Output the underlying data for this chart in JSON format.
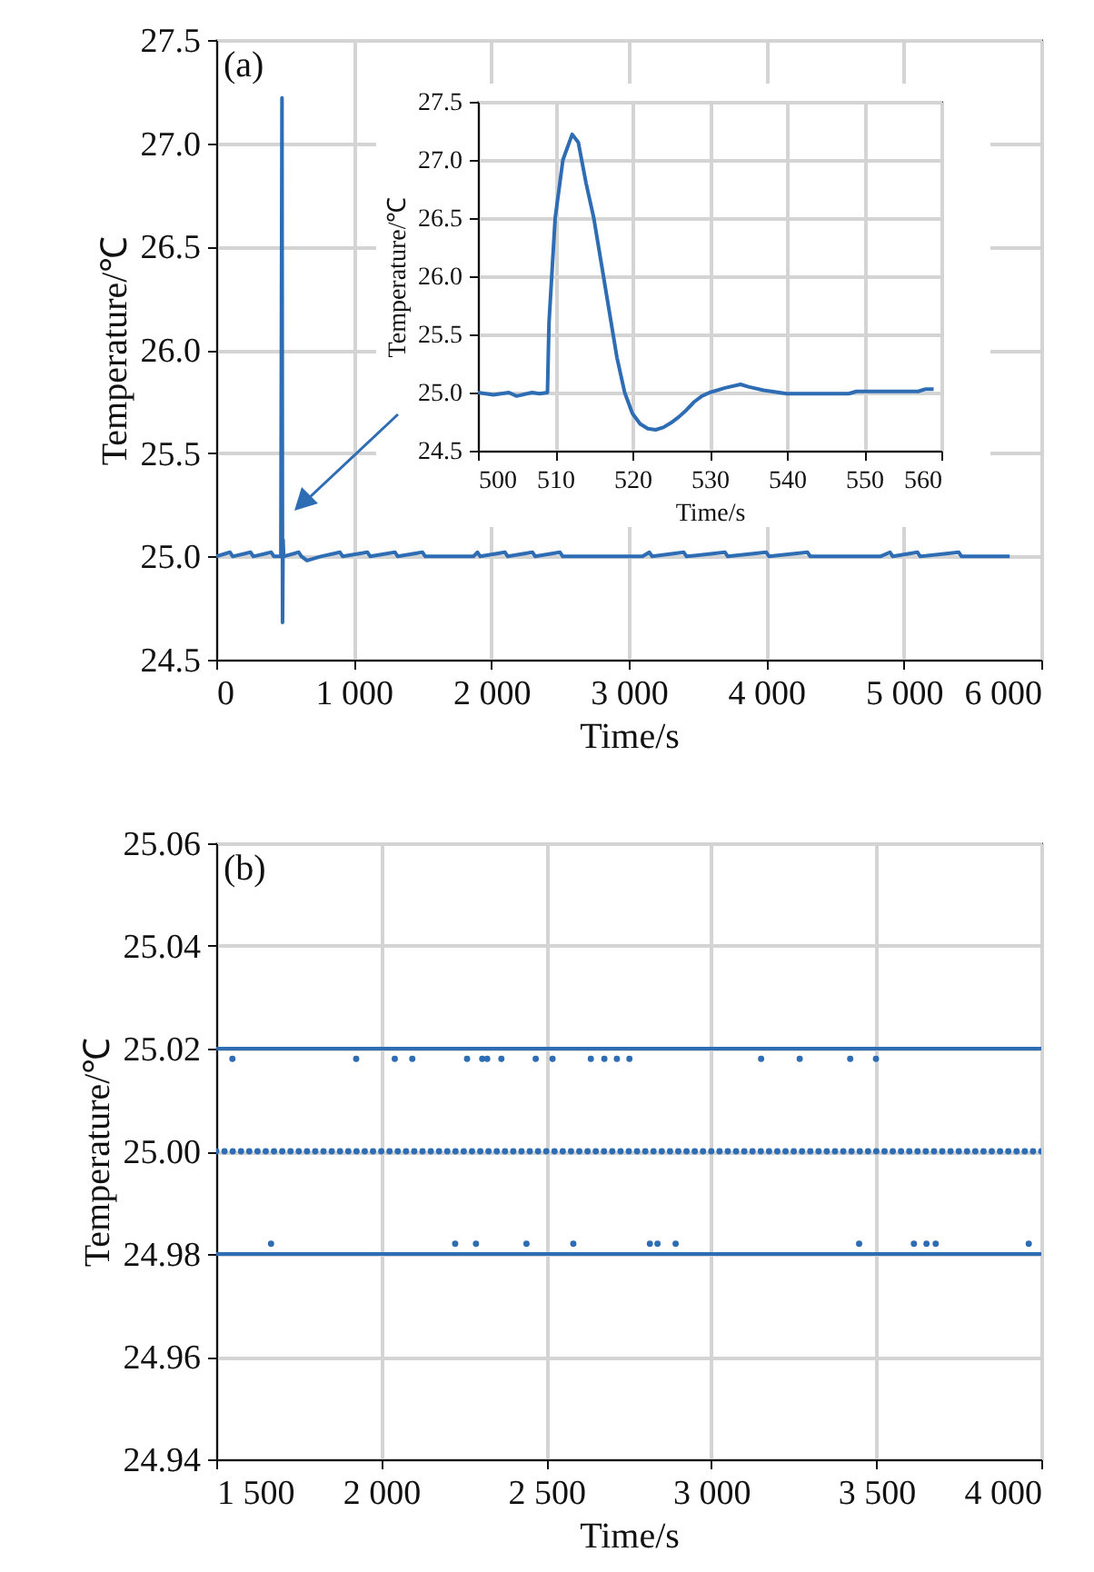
{
  "chart_data": [
    {
      "type": "line",
      "annotations": [
        "(a)"
      ],
      "xlabel": "Time/s",
      "ylabel": "Temperature/℃",
      "xlim": [
        0,
        6000
      ],
      "ylim": [
        24.5,
        27.5
      ],
      "xticks": [
        0,
        {
          "value": 1000,
          "label": "1 000"
        },
        {
          "value": 2000,
          "label": "2 000"
        },
        {
          "value": 3000,
          "label": "3 000"
        },
        {
          "value": 4000,
          "label": "4 000"
        },
        {
          "value": 5000,
          "label": "5 000"
        },
        {
          "value": 6000,
          "label": "6 000"
        }
      ],
      "yticks": [
        24.5,
        {
          "value": 25,
          "label": "25.0"
        },
        25.5,
        {
          "value": 26,
          "label": "26.0"
        },
        26.5,
        {
          "value": 27,
          "label": "27.0"
        },
        27.5
      ],
      "grid": true,
      "series": [
        {
          "color": "#2e6db4",
          "x": [
            0,
            100,
            120,
            250,
            270,
            400,
            420,
            470,
            478,
            482,
            486,
            490,
            600,
            620,
            660,
            760,
            900,
            920,
            1100,
            1120,
            1300,
            1320,
            1500,
            1520,
            1750,
            1870,
            1900,
            1920,
            2100,
            2120,
            2300,
            2320,
            2500,
            2520,
            2920,
            3100,
            3150,
            3170,
            3400,
            3420,
            3700,
            3720,
            4000,
            4020,
            4300,
            4320,
            4680,
            4830,
            4900,
            4920,
            5100,
            5120,
            5400,
            5420,
            5770
          ],
          "values": [
            25.0,
            25.02,
            25.0,
            25.02,
            25.0,
            25.02,
            25.0,
            25.0,
            27.22,
            24.68,
            25.08,
            25.0,
            25.02,
            25.0,
            24.98,
            25.0,
            25.02,
            25.0,
            25.02,
            25.0,
            25.02,
            25.0,
            25.02,
            25.0,
            25.0,
            25.0,
            25.02,
            25.0,
            25.02,
            25.0,
            25.02,
            25.0,
            25.02,
            25.0,
            25.0,
            25.0,
            25.02,
            25.0,
            25.02,
            25.0,
            25.02,
            25.0,
            25.02,
            25.0,
            25.02,
            25.0,
            25.0,
            25.0,
            25.02,
            25.0,
            25.02,
            25.0,
            25.02,
            25.0,
            25.0
          ]
        }
      ]
    },
    {
      "type": "line",
      "xlabel": "Time/s",
      "ylabel": "Temperature/℃",
      "xlim": [
        500,
        560
      ],
      "ylim": [
        24.5,
        27.5
      ],
      "xticks": [
        500,
        510,
        520,
        530,
        540,
        550,
        560
      ],
      "yticks": [
        24.5,
        {
          "value": 25,
          "label": "25.0"
        },
        25.5,
        {
          "value": 26,
          "label": "26.0"
        },
        26.5,
        {
          "value": 27,
          "label": "27.0"
        },
        27.5
      ],
      "grid": true,
      "series": [
        {
          "color": "#2e6db4",
          "x": [
            500,
            502,
            504,
            505,
            507,
            508,
            509,
            509.2,
            510,
            511,
            512.2,
            513,
            514,
            515,
            516,
            517,
            518,
            519,
            520,
            521,
            522,
            523,
            524,
            525,
            526,
            527,
            528,
            529,
            530,
            532,
            534,
            535,
            537,
            539,
            540,
            548,
            549,
            557,
            558,
            559
          ],
          "values": [
            25.0,
            24.98,
            25.0,
            24.97,
            25.0,
            24.99,
            25.0,
            25.6,
            26.5,
            27.0,
            27.22,
            27.15,
            26.8,
            26.5,
            26.1,
            25.7,
            25.3,
            25.0,
            24.82,
            24.73,
            24.69,
            24.68,
            24.7,
            24.74,
            24.79,
            24.85,
            24.92,
            24.97,
            25.0,
            25.04,
            25.07,
            25.05,
            25.02,
            25.0,
            24.99,
            24.99,
            25.01,
            25.01,
            25.03,
            25.03
          ]
        }
      ]
    },
    {
      "type": "scatter",
      "annotations": [
        "(b)"
      ],
      "xlabel": "Time/s",
      "ylabel": "Temperature/℃",
      "xlim": [
        1500,
        4000
      ],
      "ylim": [
        24.94,
        25.06
      ],
      "xticks": [
        {
          "value": 1500,
          "label": "1 500"
        },
        {
          "value": 2000,
          "label": "2 000"
        },
        {
          "value": 2500,
          "label": "2 500"
        },
        {
          "value": 3000,
          "label": "3 000"
        },
        {
          "value": 3500,
          "label": "3 500"
        },
        {
          "value": 4000,
          "label": "4 000"
        }
      ],
      "yticks": [
        24.94,
        24.96,
        24.98,
        {
          "value": 25,
          "label": "25.00"
        },
        25.02,
        25.04,
        25.06
      ],
      "grid": true,
      "marker": "circle",
      "series": [
        {
          "type": "line",
          "marker": "none",
          "color": "#2e6db4",
          "x": [
            1500,
            4000
          ],
          "values": [
            25.02,
            25.02
          ]
        },
        {
          "type": "line",
          "marker": "none",
          "color": "#2e6db4",
          "x": [
            1500,
            4000
          ],
          "values": [
            24.98,
            24.98
          ]
        },
        {
          "color": "#2e6db4",
          "x": [
            1549,
            1924,
            2041,
            2094,
            2260,
            2306,
            2321,
            2364,
            2468,
            2519,
            2635,
            2676,
            2714,
            2752,
            3151,
            3268,
            3421,
            3499
          ],
          "values": [
            25.018,
            25.018,
            25.018,
            25.018,
            25.018,
            25.018,
            25.018,
            25.018,
            25.018,
            25.018,
            25.018,
            25.018,
            25.018,
            25.018,
            25.018,
            25.018,
            25.018,
            25.018
          ]
        },
        {
          "color": "#2e6db4",
          "x": [
            1500,
            1525,
            1550,
            1575,
            1600,
            1625,
            1650,
            1675,
            1700,
            1725,
            1750,
            1775,
            1800,
            1825,
            1850,
            1875,
            1900,
            1925,
            1950,
            1975,
            2000,
            2025,
            2050,
            2075,
            2100,
            2125,
            2150,
            2175,
            2200,
            2225,
            2250,
            2275,
            2300,
            2325,
            2350,
            2375,
            2400,
            2425,
            2450,
            2475,
            2500,
            2525,
            2550,
            2575,
            2600,
            2625,
            2650,
            2675,
            2700,
            2725,
            2750,
            2775,
            2800,
            2825,
            2850,
            2875,
            2900,
            2925,
            2950,
            2975,
            3000,
            3025,
            3050,
            3075,
            3100,
            3125,
            3150,
            3175,
            3200,
            3225,
            3250,
            3275,
            3300,
            3325,
            3350,
            3375,
            3400,
            3425,
            3450,
            3475,
            3500,
            3525,
            3550,
            3575,
            3600,
            3625,
            3650,
            3675,
            3700,
            3725,
            3750,
            3775,
            3800,
            3825,
            3850,
            3875,
            3900,
            3925,
            3950,
            3975,
            4000
          ],
          "values": [
            25.0,
            25.0,
            25.0,
            25.0,
            25.0,
            25.0,
            25.0,
            25.0,
            25.0,
            25.0,
            25.0,
            25.0,
            25.0,
            25.0,
            25.0,
            25.0,
            25.0,
            25.0,
            25.0,
            25.0,
            25.0,
            25.0,
            25.0,
            25.0,
            25.0,
            25.0,
            25.0,
            25.0,
            25.0,
            25.0,
            25.0,
            25.0,
            25.0,
            25.0,
            25.0,
            25.0,
            25.0,
            25.0,
            25.0,
            25.0,
            25.0,
            25.0,
            25.0,
            25.0,
            25.0,
            25.0,
            25.0,
            25.0,
            25.0,
            25.0,
            25.0,
            25.0,
            25.0,
            25.0,
            25.0,
            25.0,
            25.0,
            25.0,
            25.0,
            25.0,
            25.0,
            25.0,
            25.0,
            25.0,
            25.0,
            25.0,
            25.0,
            25.0,
            25.0,
            25.0,
            25.0,
            25.0,
            25.0,
            25.0,
            25.0,
            25.0,
            25.0,
            25.0,
            25.0,
            25.0,
            25.0,
            25.0,
            25.0,
            25.0,
            25.0,
            25.0,
            25.0,
            25.0,
            25.0,
            25.0,
            25.0,
            25.0,
            25.0,
            25.0,
            25.0,
            25.0,
            25.0,
            25.0,
            25.0,
            25.0,
            25.0
          ]
        },
        {
          "color": "#2e6db4",
          "x": [
            1666,
            2224,
            2287,
            2440,
            2582,
            2814,
            2837,
            2892,
            3448,
            3614,
            3652,
            3680,
            3962
          ],
          "values": [
            24.982,
            24.982,
            24.982,
            24.982,
            24.982,
            24.982,
            24.982,
            24.982,
            24.982,
            24.982,
            24.982,
            24.982,
            24.982
          ]
        }
      ]
    }
  ]
}
